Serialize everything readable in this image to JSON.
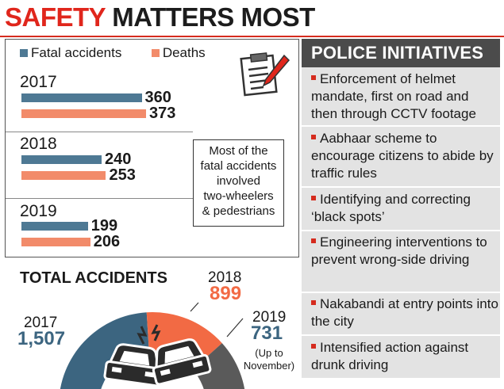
{
  "title": {
    "part1": "SAFETY",
    "part2": "MATTERS MOST"
  },
  "colors": {
    "fatal": "#4e7994",
    "deaths": "#f28b6a",
    "accent": "#d52b1e",
    "total_2018": "#f26a44",
    "total_2019": "#5a5a5a",
    "total_2017": "#3c6580"
  },
  "note": {
    "line1": "Most of the",
    "line2": "fatal accidents",
    "line3": "involved",
    "line4": "two-wheelers",
    "line5": "& pedestrians"
  },
  "police": {
    "heading": "POLICE INITIATIVES",
    "items": [
      "Enforcement of helmet mandate, first on road and then through CCTV footage",
      "Aabhaar scheme to encourage citizens to abide by traffic rules",
      "Identifying and correcting ‘black spots’",
      "Engineering interventions to prevent wrong-side driving",
      "Nakabandi at entry points into the city",
      "Intensified action against drunk driving"
    ]
  },
  "chart_data": [
    {
      "type": "bar",
      "orientation": "horizontal",
      "categories": [
        "2017",
        "2018",
        "2019"
      ],
      "series": [
        {
          "name": "Fatal accidents",
          "values": [
            360,
            240,
            199
          ],
          "labels": [
            "360",
            "240",
            "199"
          ]
        },
        {
          "name": "Deaths",
          "values": [
            373,
            253,
            206
          ],
          "labels": [
            "373",
            "253",
            "206"
          ]
        }
      ],
      "legend": [
        "Fatal accidents",
        "Deaths"
      ],
      "xlim": [
        0,
        373
      ]
    },
    {
      "type": "pie",
      "style": "half-donut",
      "title": "TOTAL ACCIDENTS",
      "categories": [
        "2017",
        "2018",
        "2019"
      ],
      "values": [
        1507,
        899,
        731
      ],
      "value_labels": [
        "1,507",
        "899",
        "731"
      ],
      "annotations": {
        "2019": "(Up to November)"
      }
    }
  ]
}
